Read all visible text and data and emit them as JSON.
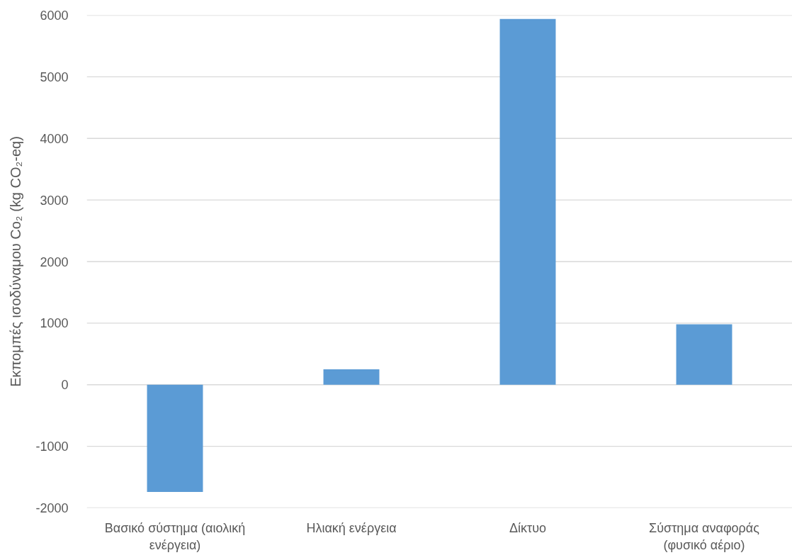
{
  "chart_data": {
    "type": "bar",
    "ylabel": "Εκπομπές ισοδύναμου Co₂ (kg CO₂-eq)",
    "categories": [
      "Βασικό σύστημα (αιολική ενέργεια)",
      "Ηλιακή ενέργεια",
      "Δίκτυο",
      "Σύστημα αναφοράς (φυσικό αέριο)"
    ],
    "values": [
      -1740,
      250,
      5940,
      980
    ],
    "color": "#5b9bd5",
    "ylim": [
      -2000,
      6000
    ],
    "yticks": [
      -2000,
      -1000,
      0,
      1000,
      2000,
      3000,
      4000,
      5000,
      6000
    ],
    "grid": "y"
  }
}
